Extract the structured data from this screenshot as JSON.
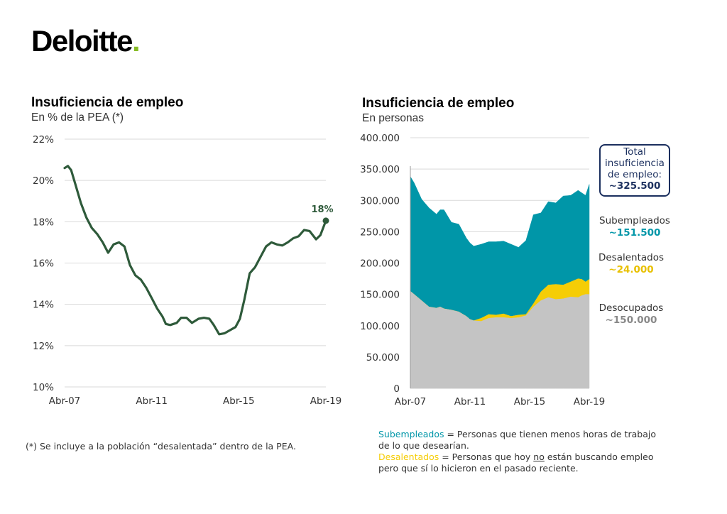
{
  "brand": {
    "name": "Deloitte",
    "dot": ".",
    "accent": "#86bc25"
  },
  "colors": {
    "line": "#2e5a3a",
    "desocupados": "#c4c4c4",
    "desalentados": "#f5cd06",
    "subempleados": "#0096a8",
    "navy": "#1b2f5e"
  },
  "left": {
    "title": "Insuficiencia de empleo",
    "subtitle": "En % de la PEA (*)",
    "end_label": "18%"
  },
  "right": {
    "title": "Insuficiencia de empleo",
    "subtitle": "En personas",
    "total_line1": "Total",
    "total_line2": "insuficiencia",
    "total_line3": "de empleo:",
    "total_value": "~325.500",
    "sub_name": "Subempleados",
    "sub_value": "~151.500",
    "des_name": "Desalentados",
    "des_value": "~24.000",
    "desoc_name": "Desocupados",
    "desoc_value": "~150.000"
  },
  "footnotes": {
    "left": "(*) Se incluye a la población “desalentada” dentro de la PEA.",
    "sub_term": "Subempleados",
    "sub_def1": " = Personas que tienen menos horas de  trabajo",
    "sub_def2": "de lo que desearían.",
    "des_term": "Desalentados",
    "des_def1a": " = Personas que hoy ",
    "des_def1b": "no",
    "des_def1c": " están buscando empleo",
    "des_def2": "pero que sí lo hicieron en el pasado reciente."
  },
  "chart_data": [
    {
      "type": "line",
      "title": "Insuficiencia de empleo",
      "subtitle": "En % de la PEA (*)",
      "x_ticks": [
        "Abr-07",
        "Abr-11",
        "Abr-15",
        "Abr-19"
      ],
      "y_ticks": [
        "10%",
        "12%",
        "14%",
        "16%",
        "18%",
        "20%",
        "22%"
      ],
      "ylim": [
        10,
        22
      ],
      "xlim": [
        2007.25,
        2019.25
      ],
      "grid": true,
      "series": [
        {
          "values": [
            [
              2007.25,
              20.6
            ],
            [
              2007.4,
              20.7
            ],
            [
              2007.55,
              20.5
            ],
            [
              2007.75,
              19.8
            ],
            [
              2008.0,
              18.9
            ],
            [
              2008.25,
              18.2
            ],
            [
              2008.5,
              17.7
            ],
            [
              2008.75,
              17.4
            ],
            [
              2009.0,
              17.0
            ],
            [
              2009.25,
              16.5
            ],
            [
              2009.5,
              16.9
            ],
            [
              2009.75,
              17.0
            ],
            [
              2010.0,
              16.8
            ],
            [
              2010.25,
              15.9
            ],
            [
              2010.5,
              15.4
            ],
            [
              2010.75,
              15.2
            ],
            [
              2011.0,
              14.8
            ],
            [
              2011.25,
              14.3
            ],
            [
              2011.5,
              13.8
            ],
            [
              2011.75,
              13.4
            ],
            [
              2011.9,
              13.05
            ],
            [
              2012.1,
              13.0
            ],
            [
              2012.4,
              13.1
            ],
            [
              2012.6,
              13.35
            ],
            [
              2012.85,
              13.35
            ],
            [
              2013.1,
              13.1
            ],
            [
              2013.4,
              13.3
            ],
            [
              2013.65,
              13.35
            ],
            [
              2013.9,
              13.3
            ],
            [
              2014.1,
              13.0
            ],
            [
              2014.35,
              12.55
            ],
            [
              2014.6,
              12.6
            ],
            [
              2014.85,
              12.75
            ],
            [
              2015.1,
              12.9
            ],
            [
              2015.3,
              13.3
            ],
            [
              2015.5,
              14.2
            ],
            [
              2015.75,
              15.5
            ],
            [
              2016.0,
              15.8
            ],
            [
              2016.25,
              16.3
            ],
            [
              2016.5,
              16.8
            ],
            [
              2016.75,
              17.0
            ],
            [
              2017.0,
              16.9
            ],
            [
              2017.25,
              16.85
            ],
            [
              2017.5,
              17.0
            ],
            [
              2017.75,
              17.2
            ],
            [
              2018.0,
              17.3
            ],
            [
              2018.25,
              17.6
            ],
            [
              2018.5,
              17.55
            ],
            [
              2018.8,
              17.15
            ],
            [
              2019.0,
              17.35
            ],
            [
              2019.25,
              18.05
            ]
          ]
        }
      ],
      "annotations": [
        "18%"
      ]
    },
    {
      "type": "area",
      "title": "Insuficiencia de empleo",
      "subtitle": "En personas",
      "x_ticks": [
        "Abr-07",
        "Abr-11",
        "Abr-15",
        "Abr-19"
      ],
      "y_ticks": [
        "0",
        "50.000",
        "100.000",
        "150.000",
        "200.000",
        "250.000",
        "300.000",
        "350.000",
        "400.000"
      ],
      "ylim": [
        0,
        400000
      ],
      "xlim": [
        2007.25,
        2019.25
      ],
      "grid": true,
      "stacked": true,
      "x": [
        2007.25,
        2007.5,
        2008.0,
        2008.5,
        2009.0,
        2009.25,
        2009.5,
        2010.0,
        2010.5,
        2011.0,
        2011.25,
        2011.5,
        2012.0,
        2012.5,
        2013.0,
        2013.5,
        2014.0,
        2014.5,
        2015.0,
        2015.5,
        2016.0,
        2016.5,
        2017.0,
        2017.5,
        2018.0,
        2018.5,
        2018.75,
        2019.0,
        2019.25
      ],
      "series": [
        {
          "name": "Desocupados",
          "values": [
            155000,
            150000,
            140000,
            130000,
            128000,
            130000,
            127000,
            125000,
            122000,
            115000,
            110000,
            108000,
            107000,
            112000,
            113000,
            113000,
            112000,
            113000,
            116000,
            130000,
            140000,
            145000,
            142000,
            143000,
            146000,
            145000,
            148000,
            150000,
            150000
          ]
        },
        {
          "name": "Desalentados",
          "values": [
            0,
            0,
            0,
            0,
            0,
            0,
            0,
            0,
            0,
            0,
            0,
            0,
            5000,
            6000,
            4000,
            6000,
            3000,
            4000,
            2000,
            5000,
            14000,
            20000,
            24000,
            22000,
            24000,
            30000,
            26000,
            20000,
            24000
          ]
        },
        {
          "name": "Subempleados",
          "values": [
            183000,
            178000,
            162000,
            158000,
            150000,
            155000,
            158000,
            140000,
            140000,
            125000,
            122000,
            119000,
            118000,
            116000,
            117000,
            116000,
            115000,
            108000,
            118000,
            142000,
            126000,
            133000,
            130000,
            142000,
            138000,
            141000,
            138000,
            138000,
            151500
          ]
        }
      ]
    }
  ]
}
